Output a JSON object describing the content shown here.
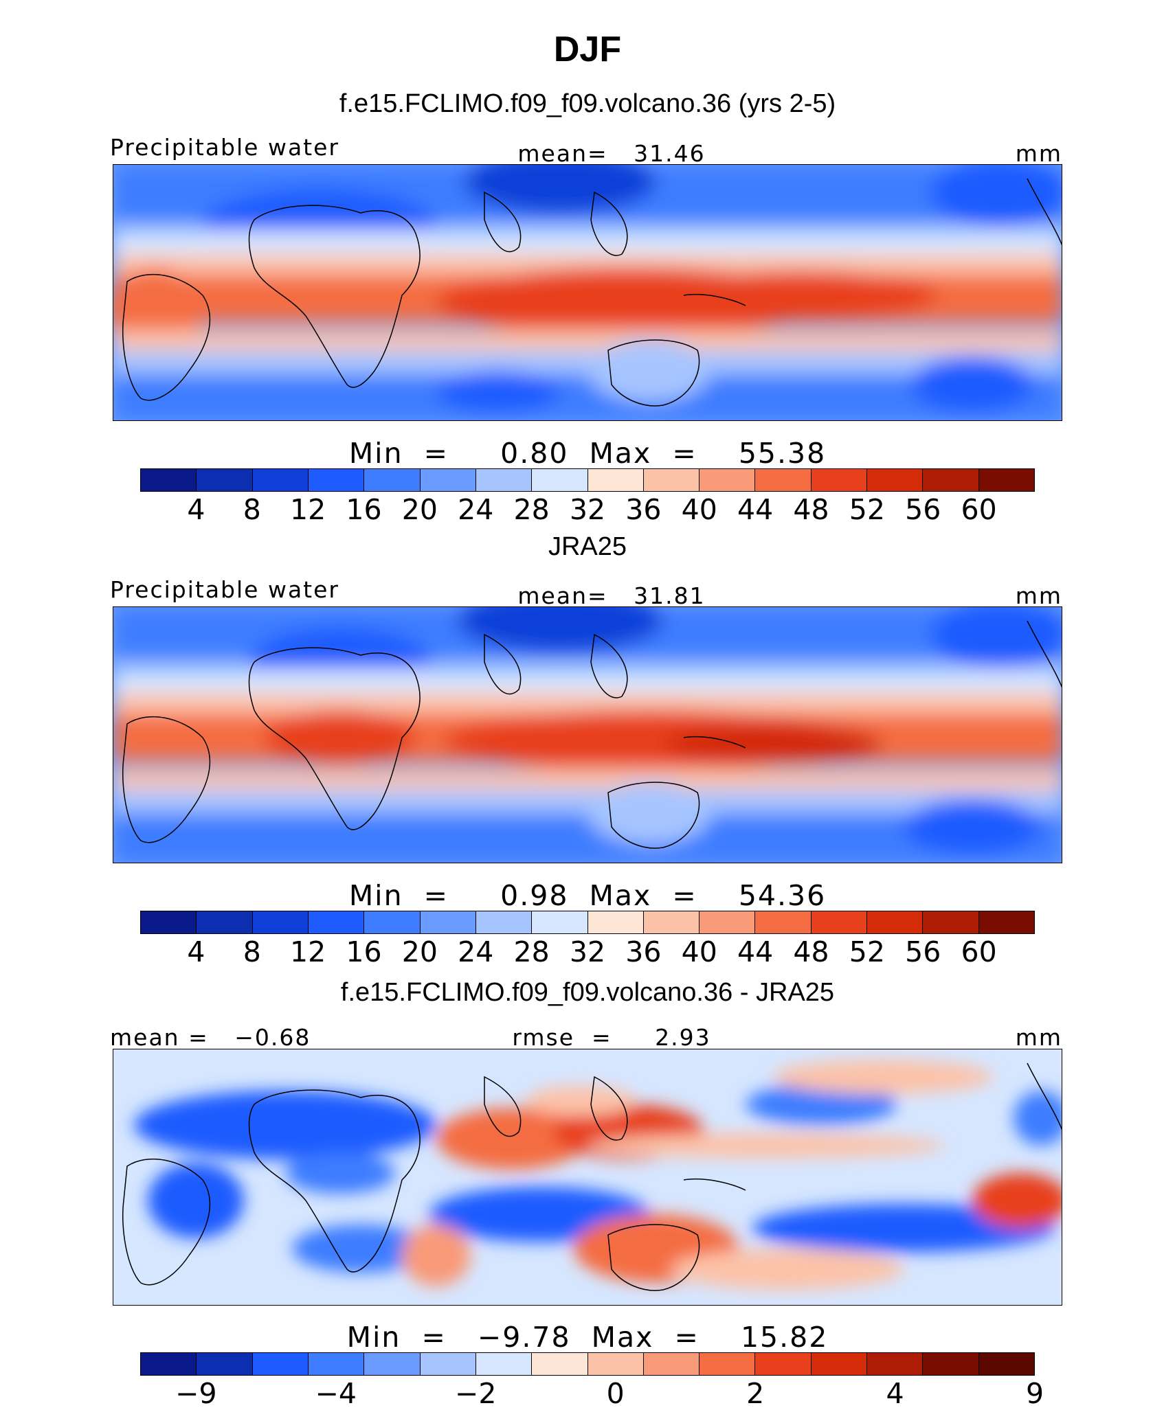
{
  "title": "DJF",
  "chart_data": [
    {
      "type": "heatmap",
      "title": "f.e15.FCLIMO.f09_f09.volcano.36 (yrs 2-5)",
      "variable_label": "Precipitable water",
      "stat_label": "mean=   31.46",
      "units": "mm",
      "min_max_label": "Min  =     0.80  Max  =    55.38",
      "min": 0.8,
      "max": 55.38,
      "mean": 31.46,
      "colorbar_ticks": [
        "4",
        "8",
        "12",
        "16",
        "20",
        "24",
        "28",
        "32",
        "36",
        "40",
        "44",
        "48",
        "52",
        "56",
        "60"
      ],
      "colorbar_levels": [
        4,
        8,
        12,
        16,
        20,
        24,
        28,
        32,
        36,
        40,
        44,
        48,
        52,
        56,
        60
      ],
      "colorbar_colors": [
        "#0a1a8a",
        "#0b2fb0",
        "#0f3fd8",
        "#1f5cff",
        "#3e7dff",
        "#6a9cff",
        "#a6c5ff",
        "#d6e6ff",
        "#fde6d6",
        "#fcc2a8",
        "#f99a78",
        "#f46d43",
        "#e8401c",
        "#d42b08",
        "#ad1c05",
        "#7a0d02"
      ]
    },
    {
      "type": "heatmap",
      "title": "JRA25",
      "variable_label": "Precipitable water",
      "stat_label": "mean=   31.81",
      "units": "mm",
      "min_max_label": "Min  =     0.98  Max  =    54.36",
      "min": 0.98,
      "max": 54.36,
      "mean": 31.81,
      "colorbar_ticks": [
        "4",
        "8",
        "12",
        "16",
        "20",
        "24",
        "28",
        "32",
        "36",
        "40",
        "44",
        "48",
        "52",
        "56",
        "60"
      ],
      "colorbar_levels": [
        4,
        8,
        12,
        16,
        20,
        24,
        28,
        32,
        36,
        40,
        44,
        48,
        52,
        56,
        60
      ],
      "colorbar_colors": [
        "#0a1a8a",
        "#0b2fb0",
        "#0f3fd8",
        "#1f5cff",
        "#3e7dff",
        "#6a9cff",
        "#a6c5ff",
        "#d6e6ff",
        "#fde6d6",
        "#fcc2a8",
        "#f99a78",
        "#f46d43",
        "#e8401c",
        "#d42b08",
        "#ad1c05",
        "#7a0d02"
      ]
    },
    {
      "type": "heatmap",
      "title": "f.e15.FCLIMO.f09_f09.volcano.36 - JRA25",
      "left_stat_label": "mean =   −0.68",
      "stat_label": "rmse  =     2.93",
      "units": "mm",
      "min_max_label": "Min  =   −9.78  Max  =    15.82",
      "min": -9.78,
      "max": 15.82,
      "mean": -0.68,
      "rmse": 2.93,
      "colorbar_ticks": [
        "−9",
        "−4",
        "−2",
        "0",
        "2",
        "4",
        "9"
      ],
      "colorbar_levels": [
        -9,
        -4,
        -2,
        0,
        2,
        4,
        9
      ],
      "colorbar_colors": [
        "#0a1a8a",
        "#0b2fb0",
        "#1f5cff",
        "#3e7dff",
        "#6a9cff",
        "#a6c5ff",
        "#d6e6ff",
        "#fde6d6",
        "#fcc2a8",
        "#f99a78",
        "#f46d43",
        "#e8401c",
        "#d42b08",
        "#ad1c05",
        "#7a0d02",
        "#5c0801"
      ]
    }
  ]
}
